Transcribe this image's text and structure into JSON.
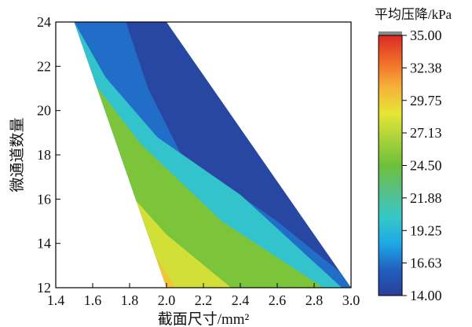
{
  "chart_data": {
    "type": "contour",
    "title": "",
    "xlabel": "截面尺寸/mm²",
    "ylabel": "微通道数量",
    "xlim": [
      1.4,
      3.0
    ],
    "ylim": [
      12,
      24
    ],
    "x_ticks": [
      "1.4",
      "1.6",
      "1.8",
      "2.0",
      "2.2",
      "2.4",
      "2.6",
      "2.8",
      "3.0"
    ],
    "y_ticks": [
      "12",
      "14",
      "16",
      "18",
      "20",
      "22",
      "24"
    ],
    "grid": false,
    "colorbar": {
      "label": "平均压降/kPa",
      "min": 14.0,
      "max": 35.0,
      "tick_labels": [
        "35.00",
        "32.38",
        "29.75",
        "27.13",
        "24.50",
        "21.88",
        "19.25",
        "16.63",
        "14.00"
      ],
      "colors": [
        "#2a3f99",
        "#2060c0",
        "#1ea8e6",
        "#36c8c8",
        "#55c088",
        "#6ec03a",
        "#a8d23a",
        "#e6e634",
        "#f6b23a",
        "#f06c2a",
        "#dc2a24"
      ]
    },
    "region": {
      "left_boundary": [
        {
          "x": 2.0,
          "y": 12
        },
        {
          "x": 1.5,
          "y": 24
        }
      ],
      "right_boundary": [
        {
          "x": 3.0,
          "y": 12
        },
        {
          "x": 2.0,
          "y": 24
        }
      ]
    },
    "levels": [
      {
        "value": 30.0,
        "points": [
          {
            "x": 1.82,
            "y": 15.0
          },
          {
            "x": 2.05,
            "y": 12.0
          }
        ]
      },
      {
        "value": 28.0,
        "points": [
          {
            "x": 1.72,
            "y": 17.0
          },
          {
            "x": 2.0,
            "y": 14.4
          },
          {
            "x": 2.35,
            "y": 12.0
          }
        ]
      },
      {
        "value": 25.0,
        "points": [
          {
            "x": 1.63,
            "y": 21.0
          },
          {
            "x": 1.86,
            "y": 18.5
          },
          {
            "x": 2.3,
            "y": 15.0
          },
          {
            "x": 2.85,
            "y": 12.0
          }
        ]
      },
      {
        "value": 20.0,
        "points": [
          {
            "x": 1.5,
            "y": 24.0
          },
          {
            "x": 1.67,
            "y": 21.5
          },
          {
            "x": 1.95,
            "y": 18.8
          },
          {
            "x": 2.4,
            "y": 16.2
          },
          {
            "x": 2.95,
            "y": 12.0
          }
        ]
      },
      {
        "value": 16.5,
        "points": [
          {
            "x": 1.78,
            "y": 24.0
          },
          {
            "x": 1.9,
            "y": 21.0
          },
          {
            "x": 2.08,
            "y": 18.0
          },
          {
            "x": 2.6,
            "y": 15.0
          },
          {
            "x": 3.0,
            "y": 12.3
          }
        ]
      }
    ]
  }
}
